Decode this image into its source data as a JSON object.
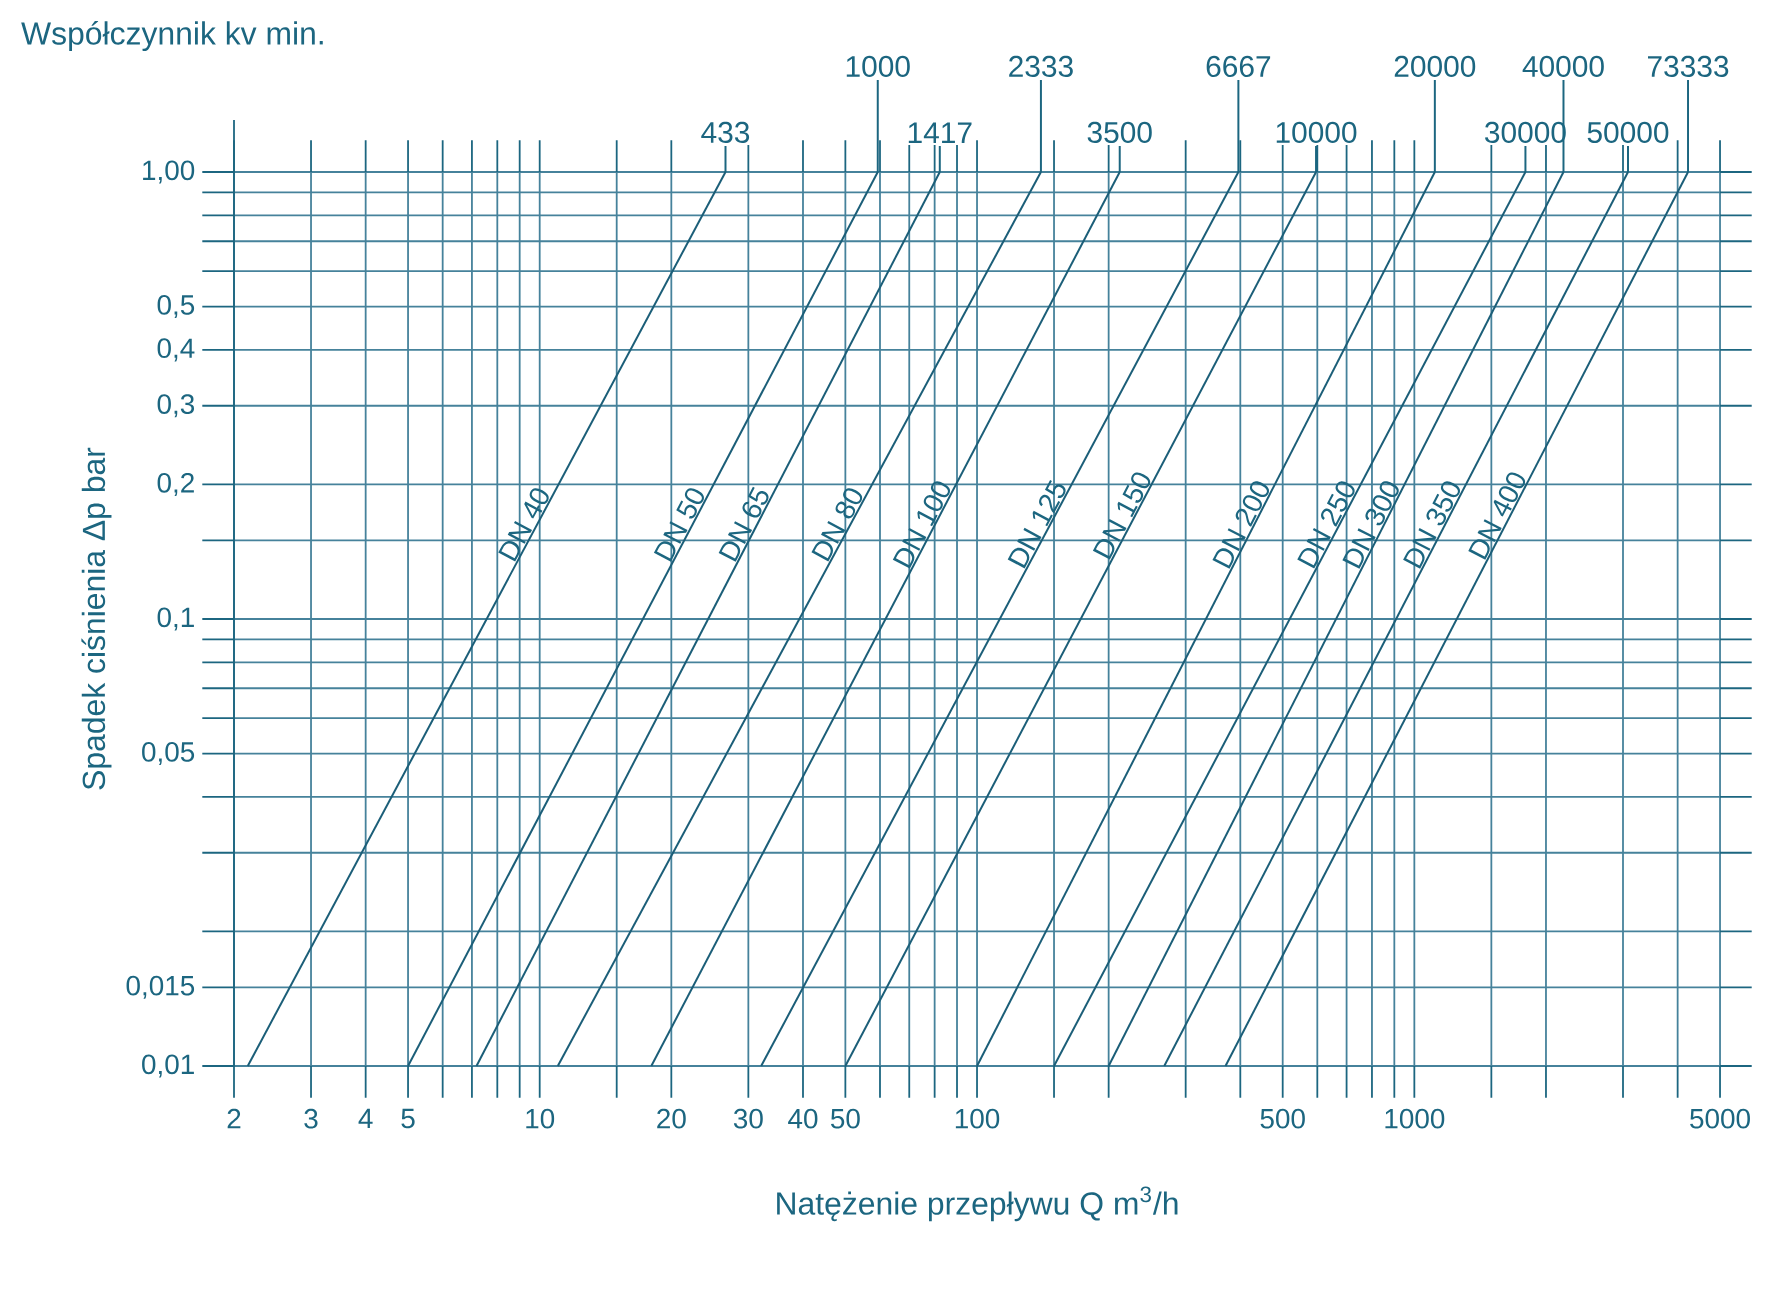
{
  "chart_data": {
    "type": "line",
    "title": "Współczynnik kv min.",
    "xlabel": "Natężenie przepływu Q m$^{3}$/h",
    "ylabel": "Spadek ciśnienia Δp bar",
    "log": "xy",
    "grid": true,
    "xlim": [
      2,
      5000
    ],
    "ylim": [
      0.01,
      1.0
    ],
    "xticks": [
      2,
      3,
      4,
      5,
      {
        "value": 6,
        "label": null
      },
      {
        "value": 7,
        "label": null
      },
      {
        "value": 8,
        "label": null
      },
      {
        "value": 9,
        "label": null
      },
      10,
      {
        "value": 15,
        "label": null
      },
      20,
      30,
      40,
      50,
      {
        "value": 60,
        "label": null
      },
      {
        "value": 70,
        "label": null
      },
      {
        "value": 80,
        "label": null
      },
      {
        "value": 90,
        "label": null
      },
      100,
      {
        "value": 150,
        "label": null
      },
      {
        "value": 200,
        "label": null
      },
      {
        "value": 300,
        "label": null
      },
      {
        "value": 400,
        "label": null
      },
      500,
      {
        "value": 600,
        "label": null
      },
      {
        "value": 700,
        "label": null
      },
      {
        "value": 800,
        "label": null
      },
      {
        "value": 900,
        "label": null
      },
      1000,
      {
        "value": 1500,
        "label": null
      },
      {
        "value": 2000,
        "label": null
      },
      {
        "value": 3000,
        "label": null
      },
      {
        "value": 4000,
        "label": null
      },
      5000
    ],
    "yticks": [
      {
        "value": 0.01,
        "label": "0,01"
      },
      {
        "value": 0.015,
        "label": "0,015"
      },
      {
        "value": 0.02,
        "label": null
      },
      {
        "value": 0.03,
        "label": null
      },
      {
        "value": 0.04,
        "label": null
      },
      {
        "value": 0.05,
        "label": "0,05"
      },
      {
        "value": 0.06,
        "label": null
      },
      {
        "value": 0.07,
        "label": null
      },
      {
        "value": 0.08,
        "label": null
      },
      {
        "value": 0.09,
        "label": null
      },
      {
        "value": 0.1,
        "label": "0,1"
      },
      {
        "value": 0.15,
        "label": null
      },
      {
        "value": 0.2,
        "label": "0,2"
      },
      {
        "value": 0.3,
        "label": "0,3"
      },
      {
        "value": 0.4,
        "label": "0,4"
      },
      {
        "value": 0.5,
        "label": "0,5"
      },
      {
        "value": 0.6,
        "label": null
      },
      {
        "value": 0.7,
        "label": null
      },
      {
        "value": 0.8,
        "label": null
      },
      {
        "value": 0.9,
        "label": null
      },
      {
        "value": 1.0,
        "label": "1,00"
      }
    ],
    "annotations": [
      {
        "text": "433",
        "x": 26.6,
        "y": 1.0
      },
      {
        "text": "1000",
        "x": 59.3,
        "y": 1.0
      },
      {
        "text": "1417",
        "x": 82.2,
        "y": 1.0
      },
      {
        "text": "2333",
        "x": 140,
        "y": 1.0
      },
      {
        "text": "3500",
        "x": 212,
        "y": 1.0
      },
      {
        "text": "6667",
        "x": 396,
        "y": 1.0
      },
      {
        "text": "10000",
        "x": 596,
        "y": 1.0
      },
      {
        "text": "20000",
        "x": 1114,
        "y": 1.0
      },
      {
        "text": "30000",
        "x": 1795,
        "y": 1.0
      },
      {
        "text": "40000",
        "x": 2193,
        "y": 1.0
      },
      {
        "text": "50000",
        "x": 3080,
        "y": 1.0
      },
      {
        "text": "73333",
        "x": 4225,
        "y": 1.0
      }
    ],
    "series": [
      {
        "name": "DN 40",
        "color": "#1b5e78",
        "x": [
          2.15,
          26.6
        ],
        "values": [
          0.01,
          1.0
        ]
      },
      {
        "name": "DN 50",
        "color": "#1b5e78",
        "x": [
          5.0,
          59.3
        ],
        "values": [
          0.01,
          1.0
        ]
      },
      {
        "name": "DN 65",
        "color": "#1b5e78",
        "x": [
          7.17,
          82.2
        ],
        "values": [
          0.01,
          1.0
        ]
      },
      {
        "name": "DN 80",
        "color": "#1b5e78",
        "x": [
          11.0,
          140
        ],
        "values": [
          0.01,
          1.0
        ]
      },
      {
        "name": "DN 100",
        "color": "#1b5e78",
        "x": [
          18.0,
          212
        ],
        "values": [
          0.01,
          1.0
        ]
      },
      {
        "name": "DN 125",
        "color": "#1b5e78",
        "x": [
          32.1,
          396
        ],
        "values": [
          0.01,
          1.0
        ]
      },
      {
        "name": "DN 150",
        "color": "#1b5e78",
        "x": [
          50,
          596
        ],
        "values": [
          0.01,
          1.0
        ]
      },
      {
        "name": "DN 200",
        "color": "#1b5e78",
        "x": [
          100,
          1114
        ],
        "values": [
          0.01,
          1.0
        ]
      },
      {
        "name": "DN 250",
        "color": "#1b5e78",
        "x": [
          150,
          1795
        ],
        "values": [
          0.01,
          1.0
        ]
      },
      {
        "name": "DN 300",
        "color": "#1b5e78",
        "x": [
          200,
          2193
        ],
        "values": [
          0.01,
          1.0
        ]
      },
      {
        "name": "DN 350",
        "color": "#1b5e78",
        "x": [
          268,
          3080
        ],
        "values": [
          0.01,
          1.0
        ]
      },
      {
        "name": "DN 400",
        "color": "#1b5e78",
        "x": [
          370,
          4225
        ],
        "values": [
          0.01,
          1.0
        ]
      }
    ]
  }
}
